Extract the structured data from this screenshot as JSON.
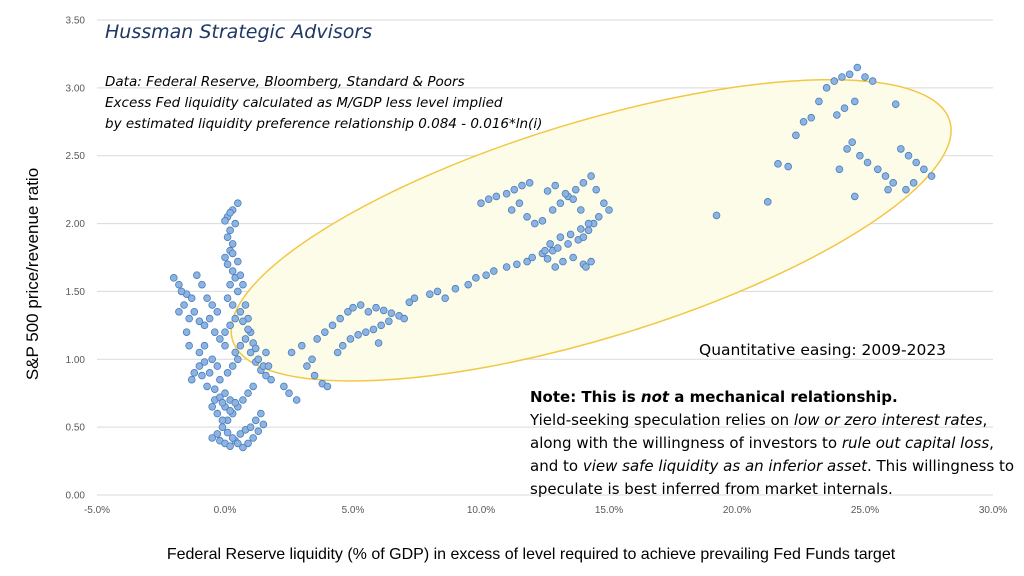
{
  "title": "Hussman Strategic Advisors",
  "source_lines": [
    "Data: Federal Reserve, Bloomberg, Standard & Poors",
    "Excess Fed liquidity calculated as M/GDP less level implied",
    "by estimated liquidity preference relationship 0.084 - 0.016*ln(i)"
  ],
  "qe_label": "Quantitative easing: 2009-2023",
  "note": {
    "heading_pre": "Note: This is ",
    "heading_em": "not",
    "heading_post": " a mechanical relationship.",
    "t1": "Yield-seeking speculation relies on ",
    "t1_em": "low or zero interest rates",
    "t2": ", along with the willingness of investors to ",
    "t2_em": "rule out capital loss",
    "t3": ", and to ",
    "t3_em": "view safe liquidity as an inferior asset",
    "t4": ". This willingness to speculate is best inferred from market internals."
  },
  "colors": {
    "point": "#8db3e2",
    "point_edge": "#4a7ebb",
    "ellipse_fill": "#fdfce8",
    "ellipse_stroke": "#f2c744",
    "grid": "#d9d9d9"
  },
  "chart_data": {
    "type": "scatter",
    "xlabel": "Federal Reserve liquidity (% of GDP) in excess of level required to achieve prevailing Fed Funds target",
    "ylabel": "S&P 500 price/revenue  ratio",
    "xlim": [
      -5,
      30
    ],
    "ylim": [
      0,
      3.5
    ],
    "x_ticks": [
      -5,
      0,
      5,
      10,
      15,
      20,
      25,
      30
    ],
    "x_tick_labels": [
      "-5.0%",
      "0.0%",
      "5.0%",
      "10.0%",
      "15.0%",
      "20.0%",
      "25.0%",
      "30.0%"
    ],
    "y_ticks": [
      0,
      0.5,
      1.0,
      1.5,
      2.0,
      2.5,
      3.0,
      3.5
    ],
    "y_tick_labels": [
      "0.00",
      "0.50",
      "1.00",
      "1.50",
      "2.00",
      "2.50",
      "3.00",
      "3.50"
    ],
    "grid": "horizontal",
    "annotation": "ellipse highlighting QE period (2009-2023)",
    "points": [
      [
        -2.0,
        1.6
      ],
      [
        -1.8,
        1.55
      ],
      [
        -1.5,
        1.48
      ],
      [
        -1.3,
        1.45
      ],
      [
        -1.6,
        1.4
      ],
      [
        -1.2,
        1.35
      ],
      [
        -1.4,
        1.3
      ],
      [
        -1.0,
        1.28
      ],
      [
        -0.8,
        1.25
      ],
      [
        -1.7,
        1.5
      ],
      [
        -1.1,
        1.62
      ],
      [
        -0.9,
        1.55
      ],
      [
        -0.7,
        1.45
      ],
      [
        -0.5,
        1.4
      ],
      [
        -0.3,
        1.35
      ],
      [
        -0.6,
        1.3
      ],
      [
        -0.4,
        1.2
      ],
      [
        -0.2,
        1.15
      ],
      [
        0.0,
        1.1
      ],
      [
        -0.8,
        1.1
      ],
      [
        -1.0,
        1.05
      ],
      [
        -0.5,
        1.0
      ],
      [
        -0.3,
        0.95
      ],
      [
        -0.6,
        0.9
      ],
      [
        -0.9,
        0.88
      ],
      [
        -1.2,
        0.9
      ],
      [
        -1.3,
        0.85
      ],
      [
        -0.7,
        0.8
      ],
      [
        -0.4,
        0.78
      ],
      [
        -0.2,
        0.85
      ],
      [
        0.1,
        0.9
      ],
      [
        0.3,
        0.95
      ],
      [
        0.5,
        1.0
      ],
      [
        0.4,
        1.05
      ],
      [
        0.6,
        1.1
      ],
      [
        0.8,
        1.15
      ],
      [
        1.0,
        1.05
      ],
      [
        1.2,
        0.98
      ],
      [
        1.4,
        0.92
      ],
      [
        1.6,
        0.88
      ],
      [
        1.8,
        0.85
      ],
      [
        1.5,
        0.95
      ],
      [
        1.3,
        1.0
      ],
      [
        1.1,
        0.8
      ],
      [
        0.9,
        0.75
      ],
      [
        0.7,
        0.7
      ],
      [
        0.5,
        0.65
      ],
      [
        0.3,
        0.6
      ],
      [
        0.1,
        0.55
      ],
      [
        -0.1,
        0.5
      ],
      [
        -0.3,
        0.45
      ],
      [
        -0.5,
        0.42
      ],
      [
        -0.2,
        0.4
      ],
      [
        0.0,
        0.38
      ],
      [
        0.2,
        0.36
      ],
      [
        0.4,
        0.4
      ],
      [
        0.6,
        0.45
      ],
      [
        0.8,
        0.48
      ],
      [
        1.0,
        0.5
      ],
      [
        1.2,
        0.55
      ],
      [
        1.4,
        0.6
      ],
      [
        1.5,
        0.52
      ],
      [
        1.3,
        0.47
      ],
      [
        1.1,
        0.42
      ],
      [
        0.9,
        0.38
      ],
      [
        0.7,
        0.35
      ],
      [
        0.5,
        0.38
      ],
      [
        0.3,
        0.42
      ],
      [
        0.1,
        0.46
      ],
      [
        -0.1,
        0.55
      ],
      [
        -0.3,
        0.6
      ],
      [
        -0.5,
        0.65
      ],
      [
        -0.4,
        0.7
      ],
      [
        -0.2,
        0.72
      ],
      [
        0.0,
        0.75
      ],
      [
        0.2,
        0.7
      ],
      [
        0.4,
        0.68
      ],
      [
        0.0,
        1.2
      ],
      [
        0.2,
        1.25
      ],
      [
        0.4,
        1.3
      ],
      [
        0.6,
        1.35
      ],
      [
        0.3,
        1.4
      ],
      [
        0.1,
        1.45
      ],
      [
        0.5,
        1.5
      ],
      [
        0.2,
        1.55
      ],
      [
        0.4,
        1.6
      ],
      [
        0.3,
        1.65
      ],
      [
        0.1,
        1.7
      ],
      [
        0.0,
        1.75
      ],
      [
        0.2,
        1.8
      ],
      [
        0.3,
        1.85
      ],
      [
        0.1,
        1.9
      ],
      [
        0.2,
        1.95
      ],
      [
        0.4,
        2.0
      ],
      [
        0.1,
        2.05
      ],
      [
        0.3,
        2.1
      ],
      [
        0.5,
        2.15
      ],
      [
        0.2,
        2.08
      ],
      [
        0.0,
        2.02
      ],
      [
        0.3,
        1.78
      ],
      [
        0.5,
        1.72
      ],
      [
        0.6,
        1.62
      ],
      [
        0.7,
        1.55
      ],
      [
        0.8,
        1.4
      ],
      [
        0.9,
        1.3
      ],
      [
        1.0,
        1.2
      ],
      [
        1.1,
        1.12
      ],
      [
        1.2,
        1.08
      ],
      [
        -1.8,
        1.35
      ],
      [
        -1.5,
        1.2
      ],
      [
        -1.4,
        1.1
      ],
      [
        -1.0,
        0.95
      ],
      [
        -0.8,
        0.98
      ],
      [
        0.0,
        0.65
      ],
      [
        0.2,
        0.62
      ],
      [
        -0.1,
        0.68
      ],
      [
        1.6,
        1.05
      ],
      [
        1.7,
        0.95
      ],
      [
        0.9,
        1.22
      ],
      [
        0.7,
        1.28
      ],
      [
        2.5,
        0.75
      ],
      [
        2.3,
        0.8
      ],
      [
        2.8,
        0.7
      ],
      [
        2.6,
        1.05
      ],
      [
        3.0,
        1.1
      ],
      [
        3.2,
        0.95
      ],
      [
        3.5,
        0.88
      ],
      [
        3.8,
        0.82
      ],
      [
        4.0,
        0.8
      ],
      [
        3.4,
        1.0
      ],
      [
        3.6,
        1.15
      ],
      [
        3.9,
        1.2
      ],
      [
        4.2,
        1.25
      ],
      [
        4.5,
        1.3
      ],
      [
        4.8,
        1.35
      ],
      [
        5.0,
        1.38
      ],
      [
        5.3,
        1.4
      ],
      [
        5.6,
        1.35
      ],
      [
        5.9,
        1.38
      ],
      [
        6.2,
        1.36
      ],
      [
        6.5,
        1.34
      ],
      [
        6.8,
        1.32
      ],
      [
        7.0,
        1.3
      ],
      [
        6.4,
        1.28
      ],
      [
        6.1,
        1.25
      ],
      [
        5.8,
        1.22
      ],
      [
        6.0,
        1.12
      ],
      [
        5.5,
        1.2
      ],
      [
        5.2,
        1.18
      ],
      [
        4.9,
        1.15
      ],
      [
        4.6,
        1.1
      ],
      [
        4.4,
        1.05
      ],
      [
        7.2,
        1.42
      ],
      [
        7.4,
        1.45
      ],
      [
        8.0,
        1.48
      ],
      [
        8.3,
        1.5
      ],
      [
        8.6,
        1.45
      ],
      [
        9.0,
        1.52
      ],
      [
        9.5,
        1.55
      ],
      [
        9.8,
        1.6
      ],
      [
        10.2,
        1.62
      ],
      [
        10.5,
        1.65
      ],
      [
        11.0,
        1.68
      ],
      [
        11.4,
        1.7
      ],
      [
        11.8,
        1.72
      ],
      [
        12.0,
        1.75
      ],
      [
        12.4,
        1.78
      ],
      [
        12.8,
        1.8
      ],
      [
        13.0,
        1.82
      ],
      [
        13.4,
        1.85
      ],
      [
        13.8,
        1.88
      ],
      [
        14.0,
        1.9
      ],
      [
        14.2,
        1.95
      ],
      [
        14.4,
        2.0
      ],
      [
        14.0,
        1.7
      ],
      [
        13.6,
        1.75
      ],
      [
        13.2,
        1.72
      ],
      [
        12.9,
        1.68
      ],
      [
        12.6,
        1.74
      ],
      [
        12.5,
        1.8
      ],
      [
        12.7,
        1.85
      ],
      [
        13.1,
        1.9
      ],
      [
        13.5,
        1.92
      ],
      [
        13.9,
        1.96
      ],
      [
        14.3,
        1.72
      ],
      [
        14.1,
        1.68
      ],
      [
        10.0,
        2.15
      ],
      [
        10.3,
        2.18
      ],
      [
        10.6,
        2.2
      ],
      [
        11.0,
        2.22
      ],
      [
        11.3,
        2.25
      ],
      [
        11.6,
        2.28
      ],
      [
        11.9,
        2.3
      ],
      [
        11.5,
        2.15
      ],
      [
        11.2,
        2.1
      ],
      [
        11.8,
        2.05
      ],
      [
        12.1,
        2.0
      ],
      [
        12.4,
        2.02
      ],
      [
        12.8,
        2.1
      ],
      [
        13.1,
        2.15
      ],
      [
        13.4,
        2.2
      ],
      [
        13.7,
        2.25
      ],
      [
        14.0,
        2.3
      ],
      [
        14.3,
        2.35
      ],
      [
        14.5,
        2.25
      ],
      [
        14.8,
        2.15
      ],
      [
        15.0,
        2.1
      ],
      [
        14.6,
        2.05
      ],
      [
        14.2,
        2.0
      ],
      [
        13.9,
        2.1
      ],
      [
        13.6,
        2.18
      ],
      [
        13.3,
        2.22
      ],
      [
        12.9,
        2.28
      ],
      [
        12.6,
        2.24
      ],
      [
        19.2,
        2.06
      ],
      [
        21.2,
        2.16
      ],
      [
        21.6,
        2.44
      ],
      [
        22.0,
        2.42
      ],
      [
        22.3,
        2.65
      ],
      [
        22.6,
        2.75
      ],
      [
        22.9,
        2.78
      ],
      [
        23.2,
        2.9
      ],
      [
        23.5,
        3.0
      ],
      [
        23.8,
        3.05
      ],
      [
        24.1,
        3.08
      ],
      [
        24.4,
        3.1
      ],
      [
        24.7,
        3.15
      ],
      [
        25.0,
        3.08
      ],
      [
        25.3,
        3.05
      ],
      [
        24.6,
        2.9
      ],
      [
        24.2,
        2.85
      ],
      [
        23.9,
        2.8
      ],
      [
        24.5,
        2.6
      ],
      [
        24.8,
        2.5
      ],
      [
        25.1,
        2.45
      ],
      [
        25.5,
        2.4
      ],
      [
        25.8,
        2.35
      ],
      [
        26.1,
        2.3
      ],
      [
        26.4,
        2.55
      ],
      [
        26.7,
        2.5
      ],
      [
        27.0,
        2.45
      ],
      [
        27.3,
        2.4
      ],
      [
        27.6,
        2.35
      ],
      [
        26.9,
        2.3
      ],
      [
        26.6,
        2.25
      ],
      [
        26.2,
        2.88
      ],
      [
        24.0,
        2.4
      ],
      [
        24.3,
        2.55
      ],
      [
        24.6,
        2.2
      ],
      [
        25.9,
        2.25
      ]
    ]
  }
}
